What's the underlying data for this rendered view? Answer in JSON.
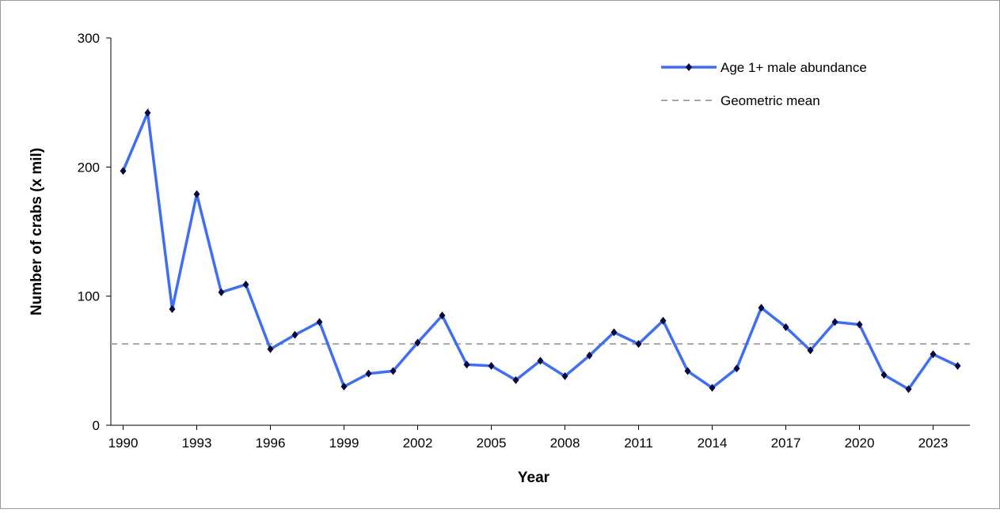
{
  "chart_data": {
    "type": "line",
    "x": [
      1990,
      1991,
      1992,
      1993,
      1994,
      1995,
      1996,
      1997,
      1998,
      1999,
      2000,
      2001,
      2002,
      2003,
      2004,
      2005,
      2006,
      2007,
      2008,
      2009,
      2010,
      2011,
      2012,
      2013,
      2014,
      2015,
      2016,
      2017,
      2018,
      2019,
      2020,
      2021,
      2022,
      2023,
      2024
    ],
    "series": [
      {
        "name": "Age 1+ male abundance",
        "color": "#3f6ef0",
        "values": [
          197,
          242,
          90,
          179,
          103,
          109,
          59,
          70,
          80,
          30,
          40,
          42,
          64,
          85,
          47,
          46,
          35,
          50,
          38,
          54,
          72,
          63,
          81,
          42,
          29,
          44,
          91,
          76,
          58,
          80,
          78,
          39,
          28,
          55,
          46
        ]
      }
    ],
    "reference_lines": [
      {
        "name": "Geometric mean",
        "value": 63,
        "color": "#a6a6a6",
        "style": "dashed"
      }
    ],
    "xlabel": "Year",
    "ylabel": "Number of crabs (x mil)",
    "xlim": [
      1989.5,
      2024.5
    ],
    "xticks": [
      1990,
      1993,
      1996,
      1999,
      2002,
      2005,
      2008,
      2011,
      2014,
      2017,
      2020,
      2023
    ],
    "ylim": [
      0,
      300
    ],
    "yticks": [
      0,
      100,
      200,
      300
    ],
    "legend": "top-right"
  }
}
